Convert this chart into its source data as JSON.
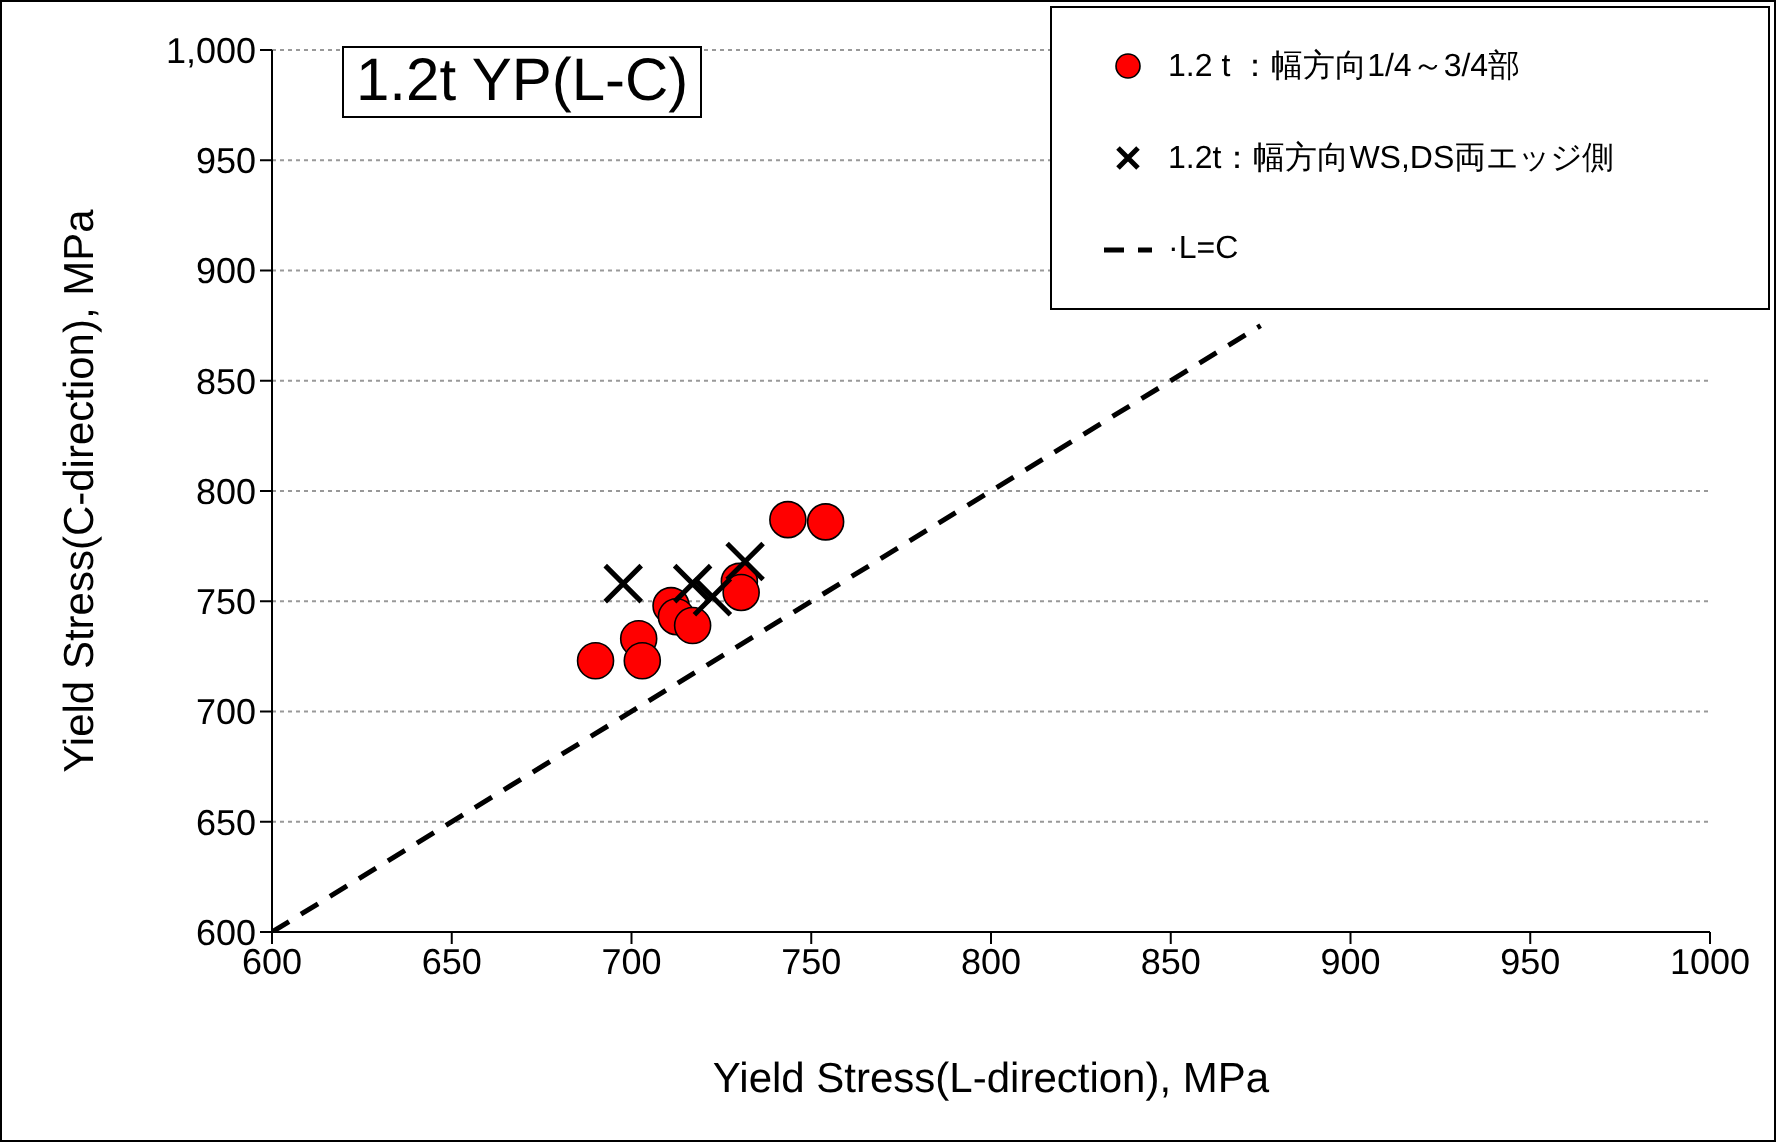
{
  "chart_data": {
    "type": "scatter",
    "title": "1.2t  YP(L-C)",
    "xlabel": "Yield Stress(L-direction),  MPa",
    "ylabel": "Yield Stress(C-direction),  MPa",
    "xlim": [
      600,
      1000
    ],
    "xticks": [
      600,
      650,
      700,
      750,
      800,
      850,
      900,
      950,
      1000
    ],
    "ylim": [
      600,
      1000
    ],
    "yticks": [
      600,
      650,
      700,
      750,
      800,
      850,
      900,
      950,
      {
        "value": 1000,
        "label": "1,000"
      }
    ],
    "grid": "y",
    "legend": "top right",
    "series": [
      {
        "name": "1.2 t  ：幅方向1/4～3/4部",
        "marker": "circle",
        "color": "#ff0000",
        "x": [
          690,
          702,
          703,
          711,
          712.5,
          717,
          730,
          730.5,
          743.5,
          754
        ],
        "values": [
          723,
          733,
          723,
          748,
          743,
          739,
          759,
          754,
          787,
          786
        ]
      },
      {
        "name": "1.2t：幅方向WS,DS両エッジ側",
        "marker": "cross",
        "color": "#000000",
        "x": [
          697.7,
          717,
          722.5,
          731.6
        ],
        "values": [
          758,
          758,
          752,
          768
        ]
      },
      {
        "name": "·L=C",
        "type": "line",
        "marker": "none",
        "line_style": "dashed",
        "color": "#000000",
        "x": [
          600,
          875
        ],
        "values": [
          600,
          875
        ]
      }
    ]
  }
}
